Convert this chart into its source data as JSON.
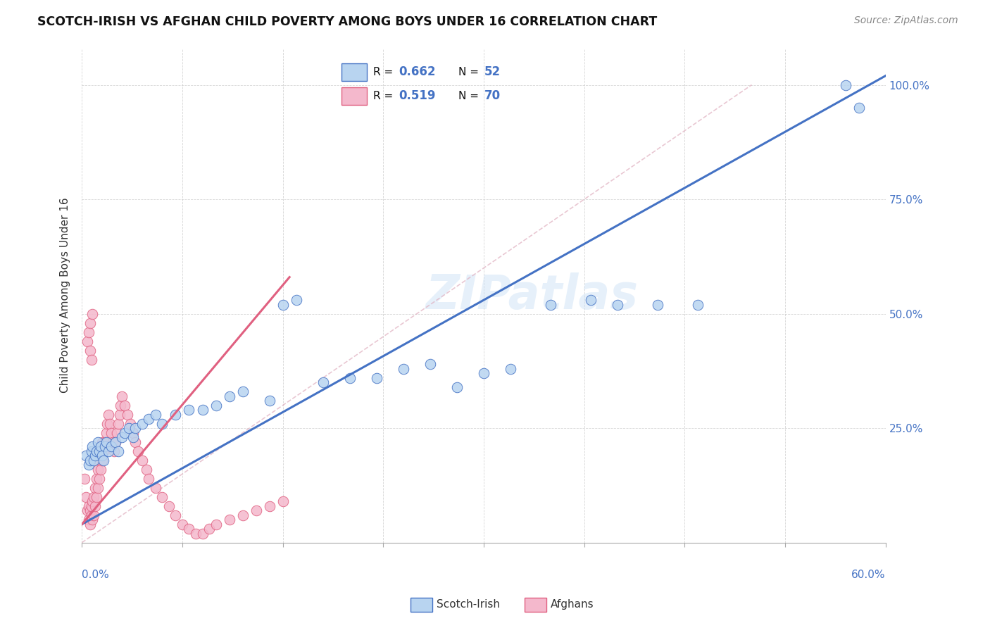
{
  "title": "SCOTCH-IRISH VS AFGHAN CHILD POVERTY AMONG BOYS UNDER 16 CORRELATION CHART",
  "source": "Source: ZipAtlas.com",
  "ylabel": "Child Poverty Among Boys Under 16",
  "ylabel_right_ticks": [
    "100.0%",
    "75.0%",
    "50.0%",
    "25.0%"
  ],
  "ylabel_right_vals": [
    1.0,
    0.75,
    0.5,
    0.25
  ],
  "xlim": [
    0.0,
    0.6
  ],
  "ylim": [
    0.0,
    1.08
  ],
  "scotch_irish_color": "#b8d4f0",
  "afghan_color": "#f4b8cc",
  "line_color_blue": "#4472c4",
  "line_color_pink": "#e06080",
  "watermark_text": "ZIPatlas",
  "scotch_irish_x": [
    0.003,
    0.005,
    0.006,
    0.007,
    0.008,
    0.009,
    0.01,
    0.011,
    0.012,
    0.013,
    0.014,
    0.015,
    0.016,
    0.017,
    0.018,
    0.02,
    0.022,
    0.025,
    0.027,
    0.03,
    0.032,
    0.035,
    0.038,
    0.04,
    0.045,
    0.05,
    0.055,
    0.06,
    0.07,
    0.08,
    0.09,
    0.1,
    0.11,
    0.12,
    0.14,
    0.15,
    0.16,
    0.18,
    0.2,
    0.22,
    0.24,
    0.26,
    0.28,
    0.3,
    0.32,
    0.35,
    0.38,
    0.4,
    0.43,
    0.46,
    0.57,
    0.58
  ],
  "scotch_irish_y": [
    0.19,
    0.17,
    0.18,
    0.2,
    0.21,
    0.18,
    0.19,
    0.2,
    0.22,
    0.2,
    0.21,
    0.19,
    0.18,
    0.21,
    0.22,
    0.2,
    0.21,
    0.22,
    0.2,
    0.23,
    0.24,
    0.25,
    0.23,
    0.25,
    0.26,
    0.27,
    0.28,
    0.26,
    0.28,
    0.29,
    0.29,
    0.3,
    0.32,
    0.33,
    0.31,
    0.52,
    0.53,
    0.35,
    0.36,
    0.36,
    0.38,
    0.39,
    0.34,
    0.37,
    0.38,
    0.52,
    0.53,
    0.52,
    0.52,
    0.52,
    1.0,
    0.95
  ],
  "afghan_x": [
    0.002,
    0.003,
    0.004,
    0.005,
    0.005,
    0.006,
    0.006,
    0.007,
    0.007,
    0.008,
    0.008,
    0.009,
    0.009,
    0.01,
    0.01,
    0.011,
    0.011,
    0.012,
    0.012,
    0.013,
    0.013,
    0.014,
    0.014,
    0.015,
    0.015,
    0.016,
    0.017,
    0.018,
    0.019,
    0.02,
    0.021,
    0.022,
    0.023,
    0.024,
    0.025,
    0.026,
    0.027,
    0.028,
    0.029,
    0.03,
    0.032,
    0.034,
    0.036,
    0.038,
    0.04,
    0.042,
    0.045,
    0.048,
    0.05,
    0.055,
    0.06,
    0.065,
    0.07,
    0.075,
    0.08,
    0.085,
    0.09,
    0.095,
    0.1,
    0.11,
    0.12,
    0.13,
    0.14,
    0.15,
    0.004,
    0.005,
    0.006,
    0.006,
    0.007,
    0.008
  ],
  "afghan_y": [
    0.14,
    0.1,
    0.07,
    0.05,
    0.08,
    0.04,
    0.07,
    0.06,
    0.08,
    0.05,
    0.09,
    0.06,
    0.1,
    0.08,
    0.12,
    0.1,
    0.14,
    0.12,
    0.16,
    0.14,
    0.18,
    0.16,
    0.2,
    0.18,
    0.22,
    0.2,
    0.22,
    0.24,
    0.26,
    0.28,
    0.26,
    0.24,
    0.22,
    0.2,
    0.22,
    0.24,
    0.26,
    0.28,
    0.3,
    0.32,
    0.3,
    0.28,
    0.26,
    0.24,
    0.22,
    0.2,
    0.18,
    0.16,
    0.14,
    0.12,
    0.1,
    0.08,
    0.06,
    0.04,
    0.03,
    0.02,
    0.02,
    0.03,
    0.04,
    0.05,
    0.06,
    0.07,
    0.08,
    0.09,
    0.44,
    0.46,
    0.48,
    0.42,
    0.4,
    0.5
  ],
  "dashed_line_x": [
    0.0,
    0.5
  ],
  "dashed_line_y": [
    0.0,
    1.0
  ],
  "blue_trend_x": [
    0.0,
    0.6
  ],
  "blue_trend_y": [
    0.04,
    1.02
  ],
  "pink_trend_x": [
    0.0,
    0.155
  ],
  "pink_trend_y": [
    0.04,
    0.58
  ]
}
